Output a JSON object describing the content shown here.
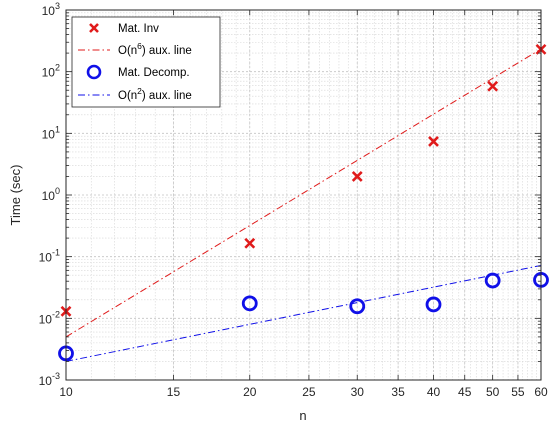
{
  "chart_data": {
    "type": "scatter",
    "xlabel": "n",
    "ylabel": "Time (sec)",
    "xscale": "log",
    "yscale": "log",
    "xlim": [
      10,
      60
    ],
    "ylim": [
      0.001,
      1000
    ],
    "grid": true,
    "minor_grid": true,
    "legend_position": "top-left",
    "x_ticks": [
      {
        "value": 10,
        "label": "10"
      },
      {
        "value": 15,
        "label": "15"
      },
      {
        "value": 20,
        "label": "20"
      },
      {
        "value": 25,
        "label": "25"
      },
      {
        "value": 30,
        "label": "30"
      },
      {
        "value": 35,
        "label": "35"
      },
      {
        "value": 40,
        "label": "40"
      },
      {
        "value": 45,
        "label": "45"
      },
      {
        "value": 50,
        "label": "50"
      },
      {
        "value": 55,
        "label": "55"
      },
      {
        "value": 60,
        "label": "60"
      }
    ],
    "y_ticks": [
      {
        "value": 0.001,
        "base": "10",
        "exp": "-3"
      },
      {
        "value": 0.01,
        "base": "10",
        "exp": "-2"
      },
      {
        "value": 0.1,
        "base": "10",
        "exp": "-1"
      },
      {
        "value": 1,
        "base": "10",
        "exp": "0"
      },
      {
        "value": 10,
        "base": "10",
        "exp": "1"
      },
      {
        "value": 100,
        "base": "10",
        "exp": "2"
      },
      {
        "value": 1000,
        "base": "10",
        "exp": "3"
      }
    ],
    "series": [
      {
        "name": "Mat. Inv",
        "style": "marker-x",
        "color": "#e01b1b",
        "x": [
          10,
          20,
          30,
          40,
          50,
          60
        ],
        "y": [
          0.013,
          0.165,
          2.0,
          7.4,
          58,
          230
        ]
      },
      {
        "name_prefix": "O(n",
        "name_sup": "6",
        "name_suffix": ") aux. line",
        "style": "dash-dot",
        "color": "#e01b1b",
        "x": [
          10,
          60
        ],
        "y": [
          0.005,
          233
        ]
      },
      {
        "name": "Mat. Decomp.",
        "style": "marker-circle",
        "color": "#1010e8",
        "x": [
          10,
          20,
          30,
          40,
          50,
          60
        ],
        "y": [
          0.0027,
          0.0175,
          0.0157,
          0.0168,
          0.041,
          0.042
        ]
      },
      {
        "name_prefix": "O(n",
        "name_sup": "2",
        "name_suffix": ") aux. line",
        "style": "dash-dot",
        "color": "#1010e8",
        "x": [
          10,
          60
        ],
        "y": [
          0.002,
          0.072
        ]
      }
    ]
  }
}
